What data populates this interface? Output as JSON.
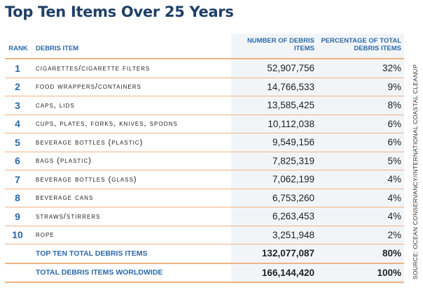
{
  "title": "Top Ten Items Over 25 Years",
  "headers": {
    "rank": "RANK",
    "item": "DEBRIS ITEM",
    "number": "NUMBER OF DEBRIS ITEMS",
    "percentage": "PERCENTAGE OF TOTAL DEBRIS ITEMS"
  },
  "rows": [
    {
      "rank": "1",
      "item": "Cigarettes/Cigarette Filters",
      "number": "52,907,756",
      "percentage": "32%"
    },
    {
      "rank": "2",
      "item": "Food Wrappers/Containers",
      "number": "14,766,533",
      "percentage": "9%"
    },
    {
      "rank": "3",
      "item": "Caps, Lids",
      "number": "13,585,425",
      "percentage": "8%"
    },
    {
      "rank": "4",
      "item": "Cups, Plates, Forks, Knives, Spoons",
      "number": "10,112,038",
      "percentage": "6%"
    },
    {
      "rank": "5",
      "item": "Beverage Bottles (Plastic)",
      "number": "9,549,156",
      "percentage": "6%"
    },
    {
      "rank": "6",
      "item": "Bags (Plastic)",
      "number": "7,825,319",
      "percentage": "5%"
    },
    {
      "rank": "7",
      "item": "Beverage Bottles (Glass)",
      "number": "7,062,199",
      "percentage": "4%"
    },
    {
      "rank": "8",
      "item": "Beverage Cans",
      "number": "6,753,260",
      "percentage": "4%"
    },
    {
      "rank": "9",
      "item": "Straws/Stirrers",
      "number": "6,263,453",
      "percentage": "4%"
    },
    {
      "rank": "10",
      "item": "Rope",
      "number": "3,251,948",
      "percentage": "2%"
    }
  ],
  "totals": [
    {
      "label": "Top Ten Total Debris Items",
      "number": "132,077,087",
      "percentage": "80%"
    },
    {
      "label": "Total Debris Items Worldwide",
      "number": "166,144,420",
      "percentage": "100%"
    }
  ],
  "source": "Source: Ocean Conservancy/International Coastal Cleanup",
  "colors": {
    "title": "#1f3f66",
    "accent_blue": "#2a6aa8",
    "rule_orange": "#f0b183",
    "shade": "#f2f5f8"
  }
}
